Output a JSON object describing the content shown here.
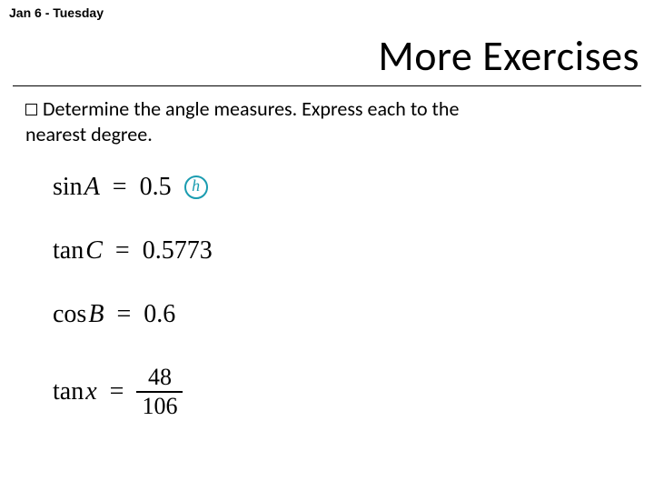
{
  "header": {
    "date_label": "Jan 6 - Tuesday",
    "title": "More Exercises"
  },
  "instruction": {
    "text_part1": "Determine the angle measures. Express each to the",
    "text_part2": "nearest degree."
  },
  "equations": {
    "eq1": {
      "fn": "sin",
      "var": "A",
      "val": "0.5"
    },
    "eq2": {
      "fn": "tan",
      "var": "C",
      "val": "0.5773"
    },
    "eq3": {
      "fn": "cos",
      "var": "B",
      "val": "0.6"
    },
    "eq4": {
      "fn": "tan",
      "var": "x",
      "num": "48",
      "den": "106"
    }
  },
  "icon": {
    "h_letter": "h"
  },
  "style": {
    "page_bg": "#ffffff",
    "text_color": "#000000",
    "accent_color": "#1a9cb0",
    "title_fontsize": 46,
    "instruction_fontsize": 22,
    "equation_fontsize": 28,
    "date_fontsize": 14
  }
}
